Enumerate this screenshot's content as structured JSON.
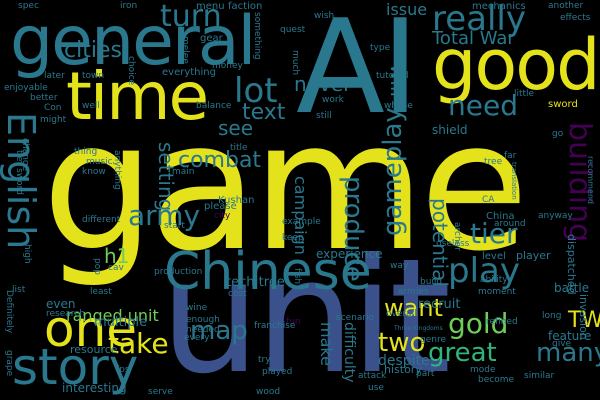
{
  "wordcloud": {
    "background": "#000000",
    "palette": [
      "#e4e21b",
      "#2a788e",
      "#3b518b",
      "#2fb47c",
      "#440154",
      "#6ece58",
      "#21918c",
      "#b5de2b"
    ],
    "words": {
      "game": "game",
      "unit": "unit",
      "ai": "AI",
      "general": "general",
      "good": "good",
      "time": "time",
      "chinese": "Chinese",
      "one": "one",
      "story": "story",
      "english": "English",
      "really": "really",
      "turn": "turn",
      "lot": "lot",
      "need": "need",
      "building": "building",
      "play": "play",
      "gameplay": "gameplay",
      "army": "army",
      "combat": "combat",
      "map": "map",
      "take": "take",
      "great": "great",
      "many": "many",
      "gold": "gold",
      "two": "two",
      "want": "want",
      "tw": "TW",
      "tier": "tier",
      "total_war": "Total War",
      "produce": "produce",
      "potential": "potential",
      "will": "will",
      "never": "never",
      "see": "see",
      "cities": "cities",
      "text": "text",
      "setting": "setting",
      "campaign": "campaign",
      "h1": "h1",
      "ranged_unit": "ranged unit",
      "issue": "issue",
      "multiple": "multiple",
      "experience": "experience",
      "tech_tree": "tech tree",
      "battle": "battle",
      "recruit": "recruit",
      "shield": "shield",
      "make": "make",
      "despite": "despite",
      "history": "history",
      "feature": "feature",
      "even": "even",
      "interesting": "interesting",
      "resource": "resource",
      "level": "level",
      "player": "player",
      "difficulty": "difficulty",
      "kushan": "Kushan",
      "china": "China",
      "invasion": "invasion",
      "dispatched": "dispatched",
      "menu": "menu",
      "faction": "faction",
      "mechanics": "mechanics",
      "spec": "spec",
      "iron": "iron",
      "wish": "wish",
      "another": "another",
      "effects": "effects",
      "gear": "gear",
      "quest": "quest",
      "type": "type",
      "tutorial": "tutorial",
      "little": "little",
      "whose": "whose",
      "sword": "sword",
      "town": "town",
      "everything": "everything",
      "money": "money",
      "balance": "balance",
      "work": "work",
      "still": "still",
      "well": "well",
      "thing": "thing",
      "music": "music",
      "know": "know",
      "later": "later",
      "enjoyable": "enjoyable",
      "better": "better",
      "might": "might",
      "change": "change",
      "tier_sword": "tier sword",
      "different": "different",
      "start": "start",
      "pop": "pop",
      "title": "title",
      "main": "main",
      "please": "please",
      "city": "city",
      "keep": "keep",
      "example": "example",
      "cav": "cav",
      "high": "high",
      "list": "list",
      "least": "least",
      "research": "research",
      "definitely": "Definitely",
      "grape": "grape",
      "production": "production",
      "cost": "cost",
      "wine": "wine",
      "enough": "enough",
      "needed": "needed",
      "every": "every",
      "fun": "fun",
      "fish": "fish",
      "franchise": "franchise",
      "try": "try",
      "played": "played",
      "wood": "wood",
      "serve": "serve",
      "scenario": "scenario",
      "attack": "attack",
      "use": "use",
      "become": "become",
      "similar": "similar",
      "part": "part",
      "overall": "overall",
      "armies": "armies",
      "build": "build",
      "ability": "ability",
      "moment": "moment",
      "genre": "genre",
      "refined": "refined",
      "mode": "mode",
      "far": "far",
      "tree": "tree",
      "around": "around",
      "anyway": "anyway",
      "useless": "useless",
      "way": "way",
      "long": "long",
      "give": "give",
      "fps": "fps",
      "go": "go",
      "ca": "CA",
      "something": "something",
      "choice": "choice",
      "melee": "melee",
      "much": "much",
      "con": "Con",
      "anything": "anything",
      "archer": "archer",
      "translation": "translation",
      "recommend": "recommend",
      "three_kingdoms": "Three Kingdoms"
    }
  }
}
